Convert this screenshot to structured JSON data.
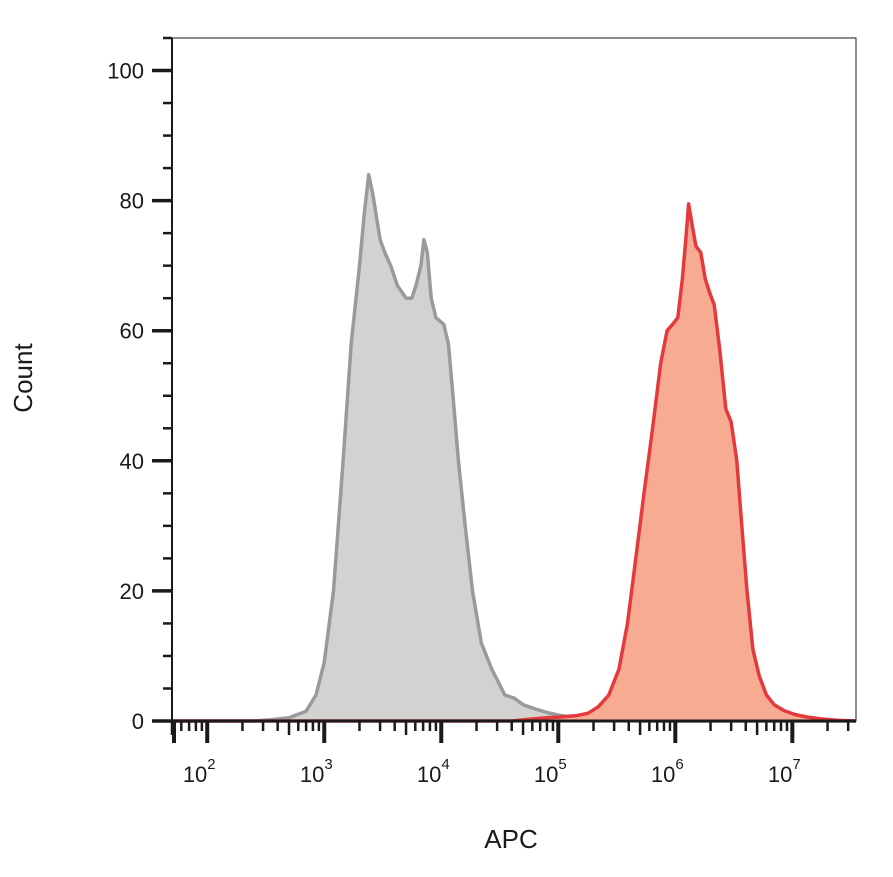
{
  "chart_data": {
    "type": "area",
    "xlabel": "APC",
    "ylabel": "Count",
    "x_scale": "log10",
    "xlim": [
      50,
      35000000
    ],
    "ylim": [
      0,
      105
    ],
    "grid": false,
    "legend": "none",
    "y_ticks": [
      {
        "value": 0,
        "label": "0"
      },
      {
        "value": 20,
        "label": "20"
      },
      {
        "value": 40,
        "label": "40"
      },
      {
        "value": 60,
        "label": "60"
      },
      {
        "value": 80,
        "label": "80"
      },
      {
        "value": 100,
        "label": "100"
      }
    ],
    "x_ticks": [
      {
        "value": 100,
        "base": "10",
        "exp": "2"
      },
      {
        "value": 1000,
        "base": "10",
        "exp": "3"
      },
      {
        "value": 10000,
        "base": "10",
        "exp": "4"
      },
      {
        "value": 100000,
        "base": "10",
        "exp": "5"
      },
      {
        "value": 1000000,
        "base": "10",
        "exp": "6"
      },
      {
        "value": 10000000,
        "base": "10",
        "exp": "7"
      }
    ],
    "series": [
      {
        "key": "control",
        "line_color": "#9a9a9a",
        "fill_color": "#d3d2d1",
        "points": [
          [
            50,
            0
          ],
          [
            250,
            0
          ],
          [
            350,
            0.2
          ],
          [
            500,
            0.5
          ],
          [
            700,
            1.5
          ],
          [
            850,
            4
          ],
          [
            1000,
            9
          ],
          [
            1200,
            20
          ],
          [
            1450,
            40
          ],
          [
            1700,
            58
          ],
          [
            2000,
            70
          ],
          [
            2200,
            78
          ],
          [
            2400,
            84
          ],
          [
            2600,
            81
          ],
          [
            3000,
            74
          ],
          [
            3300,
            72
          ],
          [
            3700,
            70
          ],
          [
            4200,
            67
          ],
          [
            5000,
            65
          ],
          [
            5600,
            65
          ],
          [
            6100,
            67
          ],
          [
            6700,
            70
          ],
          [
            7100,
            74
          ],
          [
            7600,
            72
          ],
          [
            8200,
            65
          ],
          [
            9000,
            62
          ],
          [
            10500,
            61
          ],
          [
            11500,
            58
          ],
          [
            12600,
            50
          ],
          [
            14000,
            40
          ],
          [
            16000,
            30
          ],
          [
            18500,
            20
          ],
          [
            22000,
            12
          ],
          [
            27000,
            8
          ],
          [
            35000,
            4
          ],
          [
            42000,
            3.5
          ],
          [
            50000,
            2.5
          ],
          [
            65000,
            1.8
          ],
          [
            80000,
            1.3
          ],
          [
            100000,
            0.9
          ],
          [
            140000,
            0.5
          ],
          [
            200000,
            0.2
          ],
          [
            300000,
            0.1
          ],
          [
            600000,
            0
          ],
          [
            35000000,
            0
          ]
        ]
      },
      {
        "key": "sample",
        "line_color": "#e33a3d",
        "fill_color": "#f7ab93",
        "points": [
          [
            50,
            0
          ],
          [
            40000,
            0
          ],
          [
            60000,
            0.3
          ],
          [
            80000,
            0.5
          ],
          [
            100000,
            0.6
          ],
          [
            140000,
            0.8
          ],
          [
            180000,
            1.2
          ],
          [
            220000,
            2.2
          ],
          [
            270000,
            4
          ],
          [
            330000,
            8
          ],
          [
            390000,
            15
          ],
          [
            460000,
            25
          ],
          [
            540000,
            35
          ],
          [
            640000,
            45
          ],
          [
            750000,
            55
          ],
          [
            850000,
            60
          ],
          [
            950000,
            61
          ],
          [
            1050000,
            62
          ],
          [
            1150000,
            68
          ],
          [
            1230000,
            74
          ],
          [
            1300000,
            79.5
          ],
          [
            1400000,
            76
          ],
          [
            1500000,
            73
          ],
          [
            1650000,
            72
          ],
          [
            1800000,
            68
          ],
          [
            1950000,
            66
          ],
          [
            2150000,
            64
          ],
          [
            2400000,
            57
          ],
          [
            2700000,
            48
          ],
          [
            3000000,
            46
          ],
          [
            3350000,
            40
          ],
          [
            3700000,
            30
          ],
          [
            4100000,
            20
          ],
          [
            4600000,
            11
          ],
          [
            5200000,
            7
          ],
          [
            6000000,
            4
          ],
          [
            7000000,
            2.5
          ],
          [
            8500000,
            1.6
          ],
          [
            10500000,
            1
          ],
          [
            13500000,
            0.6
          ],
          [
            18000000,
            0.3
          ],
          [
            24000000,
            0.1
          ],
          [
            35000000,
            0
          ]
        ]
      }
    ]
  }
}
